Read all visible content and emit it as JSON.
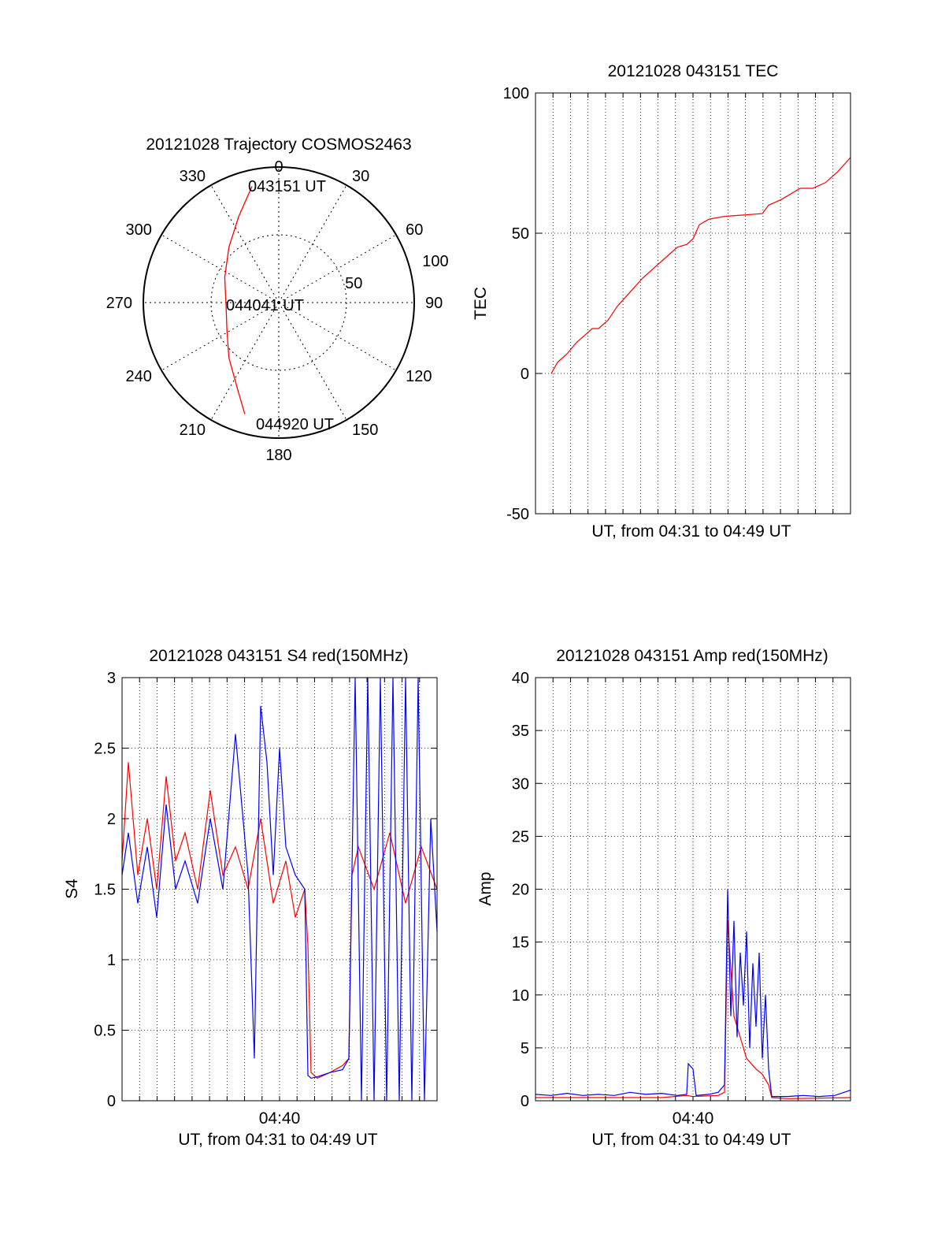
{
  "colors": {
    "red": "#ff0000",
    "blue": "#0000ff",
    "grid": "#000000",
    "axis": "#000000"
  },
  "chart_data": [
    {
      "type": "polar-trajectory",
      "title": "20121028 Trajectory COSMOS2463",
      "azimuth_labels": [
        "0",
        "30",
        "60",
        "90",
        "120",
        "150",
        "180",
        "210",
        "240",
        "270",
        "300",
        "330"
      ],
      "radial_labels": [
        "50",
        "100"
      ],
      "rlim": [
        0,
        100
      ],
      "grid": true,
      "series": [
        {
          "color": "red",
          "points": [
            {
              "az": 347.0,
              "r": 88.0
            },
            {
              "az": 335.0,
              "r": 70.0
            },
            {
              "az": 318.0,
              "r": 55.0
            },
            {
              "az": 295.0,
              "r": 44.0
            },
            {
              "az": 268.0,
              "r": 39.0
            },
            {
              "az": 243.0,
              "r": 43.0
            },
            {
              "az": 222.0,
              "r": 55.0
            },
            {
              "az": 206.0,
              "r": 70.0
            },
            {
              "az": 197.0,
              "r": 86.0
            }
          ]
        }
      ],
      "annotations": [
        "043151 UT",
        "044041 UT",
        "044920 UT"
      ]
    },
    {
      "type": "line",
      "title": "20121028 043151 TEC",
      "ylabel": "TEC",
      "xlabel": "UT, from 04:31 to 04:49 UT",
      "ylim": [
        -50,
        100
      ],
      "yticks": [
        -50,
        0,
        50,
        100
      ],
      "xlim": [
        0,
        1
      ],
      "grid": true,
      "series": [
        {
          "color": "red",
          "x": [
            0.05,
            0.07,
            0.1,
            0.13,
            0.16,
            0.18,
            0.2,
            0.23,
            0.26,
            0.3,
            0.34,
            0.38,
            0.42,
            0.45,
            0.48,
            0.5,
            0.52,
            0.55,
            0.6,
            0.66,
            0.72,
            0.74,
            0.78,
            0.84,
            0.88,
            0.92,
            0.96,
            1.0
          ],
          "y": [
            0,
            4,
            7,
            11,
            14,
            16,
            16,
            19,
            24,
            29,
            34,
            38,
            42,
            45,
            46,
            48,
            53,
            55,
            56,
            56.5,
            57,
            60,
            62,
            66,
            66,
            68,
            72,
            77
          ]
        }
      ]
    },
    {
      "type": "line",
      "title": "20121028 043151 S4 red(150MHz)",
      "ylabel": "S4",
      "xlabel": "UT, from 04:31 to 04:49 UT",
      "xtick_labels": [
        "04:40"
      ],
      "ylim": [
        0,
        3
      ],
      "yticks": [
        "0",
        "0.5",
        "1",
        "1.5",
        "2",
        "2.5",
        "3"
      ],
      "xlim": [
        0,
        1
      ],
      "grid": true,
      "series": [
        {
          "color": "red",
          "x": [
            0.0,
            0.02,
            0.05,
            0.08,
            0.11,
            0.14,
            0.17,
            0.2,
            0.24,
            0.28,
            0.32,
            0.36,
            0.4,
            0.44,
            0.48,
            0.52,
            0.55,
            0.58,
            0.59,
            0.6,
            0.62,
            0.66,
            0.7,
            0.72,
            0.73,
            0.75,
            0.8,
            0.85,
            0.9,
            0.95,
            1.0
          ],
          "y": [
            1.7,
            2.4,
            1.6,
            2.0,
            1.5,
            2.3,
            1.7,
            1.9,
            1.5,
            2.2,
            1.6,
            1.8,
            1.5,
            2.0,
            1.4,
            1.7,
            1.3,
            1.5,
            1.1,
            0.2,
            0.16,
            0.2,
            0.25,
            0.3,
            1.6,
            1.8,
            1.5,
            1.9,
            1.4,
            1.8,
            1.5
          ]
        },
        {
          "color": "blue",
          "x": [
            0.0,
            0.02,
            0.05,
            0.08,
            0.11,
            0.14,
            0.17,
            0.2,
            0.24,
            0.28,
            0.32,
            0.36,
            0.4,
            0.42,
            0.44,
            0.46,
            0.48,
            0.5,
            0.52,
            0.55,
            0.58,
            0.59,
            0.6,
            0.62,
            0.66,
            0.7,
            0.72,
            0.74,
            0.76,
            0.78,
            0.8,
            0.82,
            0.84,
            0.86,
            0.88,
            0.9,
            0.92,
            0.94,
            0.96,
            0.98,
            1.0
          ],
          "y": [
            1.6,
            1.9,
            1.4,
            1.8,
            1.3,
            2.1,
            1.5,
            1.7,
            1.4,
            2.0,
            1.5,
            2.6,
            1.6,
            0.3,
            2.8,
            2.4,
            1.6,
            2.5,
            1.8,
            1.6,
            1.5,
            0.18,
            0.16,
            0.17,
            0.2,
            0.22,
            0.3,
            3.0,
            0.0,
            3.0,
            0.0,
            3.0,
            0.0,
            3.0,
            0.0,
            3.0,
            0.0,
            3.0,
            0.0,
            2.0,
            1.2
          ]
        }
      ]
    },
    {
      "type": "line",
      "title": "20121028 043151 Amp red(150MHz)",
      "ylabel": "Amp",
      "xlabel": "UT, from 04:31 to 04:49 UT",
      "xtick_labels": [
        "04:40"
      ],
      "ylim": [
        0,
        40
      ],
      "yticks": [
        0,
        5,
        10,
        15,
        20,
        25,
        30,
        35,
        40
      ],
      "xlim": [
        0,
        1
      ],
      "grid": true,
      "series": [
        {
          "color": "red",
          "x": [
            0.0,
            0.2,
            0.4,
            0.48,
            0.5,
            0.58,
            0.6,
            0.61,
            0.63,
            0.65,
            0.67,
            0.7,
            0.72,
            0.74,
            0.75,
            0.8,
            1.0
          ],
          "y": [
            0.3,
            0.3,
            0.3,
            0.5,
            0.4,
            0.5,
            0.8,
            17.0,
            8.0,
            6.0,
            4.0,
            3.0,
            2.5,
            1.5,
            0.3,
            0.2,
            0.3
          ]
        },
        {
          "color": "blue",
          "x": [
            0.0,
            0.05,
            0.1,
            0.15,
            0.2,
            0.25,
            0.3,
            0.35,
            0.4,
            0.45,
            0.48,
            0.485,
            0.5,
            0.51,
            0.55,
            0.58,
            0.6,
            0.61,
            0.62,
            0.63,
            0.64,
            0.65,
            0.66,
            0.67,
            0.68,
            0.69,
            0.7,
            0.71,
            0.72,
            0.73,
            0.74,
            0.75,
            0.8,
            0.85,
            0.9,
            0.95,
            1.0
          ],
          "y": [
            0.6,
            0.5,
            0.7,
            0.5,
            0.6,
            0.5,
            0.8,
            0.6,
            0.7,
            0.5,
            0.6,
            3.5,
            3.0,
            0.5,
            0.6,
            0.8,
            1.5,
            20.0,
            8.0,
            17.0,
            6.0,
            14.0,
            9.0,
            16.0,
            5.0,
            13.0,
            7.0,
            14.0,
            4.0,
            10.0,
            3.0,
            0.4,
            0.4,
            0.5,
            0.4,
            0.5,
            1.0
          ]
        }
      ]
    }
  ]
}
